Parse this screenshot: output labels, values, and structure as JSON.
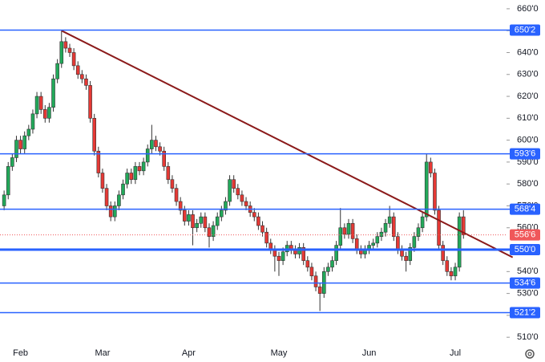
{
  "chart_data": {
    "type": "candlestick",
    "up_color": "#22a95a",
    "down_color": "#e53935",
    "ylim": [
      506.4,
      664
    ],
    "xlim": [
      -1,
      122.5
    ],
    "yticks": [
      {
        "value": 510,
        "label": "510'0"
      },
      {
        "value": 520,
        "label": "520'0"
      },
      {
        "value": 530,
        "label": "530'0"
      },
      {
        "value": 540,
        "label": "540'0"
      },
      {
        "value": 550,
        "label": "550'0"
      },
      {
        "value": 560,
        "label": "560'0"
      },
      {
        "value": 570,
        "label": "570'0"
      },
      {
        "value": 580,
        "label": "580'0"
      },
      {
        "value": 590,
        "label": "590'0"
      },
      {
        "value": 600,
        "label": "600'0"
      },
      {
        "value": 610,
        "label": "610'0"
      },
      {
        "value": 620,
        "label": "620'0"
      },
      {
        "value": 630,
        "label": "630'0"
      },
      {
        "value": 640,
        "label": "640'0"
      },
      {
        "value": 650,
        "label": "650'0"
      },
      {
        "value": 660,
        "label": "660'0"
      }
    ],
    "x_labels": [
      {
        "index": 4,
        "label": "Feb"
      },
      {
        "index": 24,
        "label": "Mar"
      },
      {
        "index": 45,
        "label": "Apr"
      },
      {
        "index": 67,
        "label": "May"
      },
      {
        "index": 89,
        "label": "Jun"
      },
      {
        "index": 110,
        "label": "Jul"
      }
    ],
    "levels": [
      {
        "value": 650.25,
        "label": "650'2",
        "width": 1.5
      },
      {
        "value": 593.75,
        "label": "593'6",
        "width": 1.5
      },
      {
        "value": 568.5,
        "label": "568'4",
        "width": 1.5
      },
      {
        "value": 550,
        "label": "550'0",
        "width": 3
      },
      {
        "value": 534.75,
        "label": "534'6",
        "width": 1.5
      },
      {
        "value": 521.25,
        "label": "521'2",
        "width": 1.5
      }
    ],
    "level_color": "#2962ff",
    "current_price": {
      "value": 556.75,
      "label": "556'6",
      "color": "#f0575a"
    },
    "trendline": {
      "x": [
        14,
        124
      ],
      "y": [
        650,
        546.5
      ],
      "color": "#8b1a1a"
    },
    "candles": [
      [
        570,
        577,
        568,
        575
      ],
      [
        575,
        590,
        573,
        588
      ],
      [
        588,
        594,
        586,
        592
      ],
      [
        592,
        602,
        590,
        600
      ],
      [
        600,
        602,
        594,
        596
      ],
      [
        596,
        604,
        594,
        602
      ],
      [
        602,
        607,
        600,
        605
      ],
      [
        605,
        614,
        603,
        612
      ],
      [
        612,
        622,
        610,
        620
      ],
      [
        620,
        622,
        612,
        614
      ],
      [
        614,
        616,
        608,
        610
      ],
      [
        610,
        617,
        608,
        615
      ],
      [
        615,
        630,
        613,
        628
      ],
      [
        628,
        637,
        626,
        635
      ],
      [
        635,
        650,
        633,
        645
      ],
      [
        645,
        647,
        640,
        642
      ],
      [
        642,
        644,
        638,
        640
      ],
      [
        640,
        642,
        632,
        634
      ],
      [
        634,
        636,
        628,
        630
      ],
      [
        630,
        632,
        626,
        628
      ],
      [
        628,
        630,
        623,
        625
      ],
      [
        625,
        627,
        608,
        610
      ],
      [
        610,
        612,
        593,
        595
      ],
      [
        595,
        597,
        583,
        585
      ],
      [
        585,
        587,
        576,
        578
      ],
      [
        578,
        580,
        568,
        570
      ],
      [
        570,
        572,
        563,
        565
      ],
      [
        565,
        572,
        563,
        570
      ],
      [
        570,
        577,
        568,
        575
      ],
      [
        575,
        582,
        573,
        580
      ],
      [
        580,
        587,
        578,
        585
      ],
      [
        585,
        587,
        580,
        582
      ],
      [
        582,
        590,
        580,
        588
      ],
      [
        588,
        590,
        584,
        586
      ],
      [
        586,
        592,
        584,
        590
      ],
      [
        590,
        598,
        588,
        596
      ],
      [
        596,
        607,
        594,
        600
      ],
      [
        600,
        602,
        595,
        597
      ],
      [
        597,
        599,
        593,
        595
      ],
      [
        595,
        597,
        586,
        588
      ],
      [
        588,
        590,
        580,
        582
      ],
      [
        582,
        584,
        576,
        578
      ],
      [
        578,
        580,
        570,
        572
      ],
      [
        572,
        574,
        566,
        568
      ],
      [
        568,
        570,
        561,
        563
      ],
      [
        563,
        568,
        561,
        566
      ],
      [
        566,
        568,
        552,
        560
      ],
      [
        560,
        564,
        558,
        562
      ],
      [
        562,
        567,
        560,
        565
      ],
      [
        565,
        567,
        558,
        560
      ],
      [
        560,
        562,
        551,
        556
      ],
      [
        556,
        563,
        554,
        561
      ],
      [
        561,
        567,
        559,
        565
      ],
      [
        565,
        570,
        563,
        568
      ],
      [
        568,
        574,
        566,
        572
      ],
      [
        572,
        584,
        570,
        582
      ],
      [
        582,
        584,
        576,
        578
      ],
      [
        578,
        580,
        573,
        575
      ],
      [
        575,
        577,
        570,
        572
      ],
      [
        572,
        574,
        568,
        570
      ],
      [
        570,
        572,
        565,
        567
      ],
      [
        567,
        569,
        563,
        565
      ],
      [
        565,
        567,
        559,
        561
      ],
      [
        561,
        563,
        556,
        558
      ],
      [
        558,
        560,
        551,
        553
      ],
      [
        553,
        555,
        548,
        550
      ],
      [
        550,
        552,
        540,
        547
      ],
      [
        547,
        549,
        538,
        545
      ],
      [
        545,
        551,
        543,
        549
      ],
      [
        549,
        554,
        547,
        552
      ],
      [
        552,
        554,
        548,
        550
      ],
      [
        550,
        552,
        546,
        548
      ],
      [
        548,
        553,
        546,
        551
      ],
      [
        551,
        553,
        543,
        545
      ],
      [
        545,
        547,
        540,
        542
      ],
      [
        542,
        544,
        536,
        538
      ],
      [
        538,
        540,
        531,
        533
      ],
      [
        533,
        535,
        522,
        530
      ],
      [
        530,
        542,
        528,
        540
      ],
      [
        540,
        544,
        538,
        542
      ],
      [
        542,
        547,
        540,
        545
      ],
      [
        545,
        554,
        543,
        552
      ],
      [
        552,
        569,
        550,
        560
      ],
      [
        560,
        562,
        555,
        557
      ],
      [
        557,
        564,
        555,
        562
      ],
      [
        562,
        564,
        553,
        555
      ],
      [
        555,
        557,
        548,
        550
      ],
      [
        550,
        552,
        546,
        548
      ],
      [
        548,
        552,
        546,
        550
      ],
      [
        550,
        554,
        548,
        552
      ],
      [
        552,
        555,
        550,
        553
      ],
      [
        553,
        558,
        551,
        556
      ],
      [
        556,
        560,
        554,
        558
      ],
      [
        558,
        564,
        556,
        562
      ],
      [
        562,
        570,
        560,
        565
      ],
      [
        565,
        567,
        554,
        556
      ],
      [
        556,
        558,
        548,
        550
      ],
      [
        550,
        552,
        545,
        547
      ],
      [
        547,
        549,
        540,
        545
      ],
      [
        545,
        553,
        543,
        551
      ],
      [
        551,
        558,
        549,
        556
      ],
      [
        556,
        562,
        554,
        560
      ],
      [
        560,
        567,
        558,
        565
      ],
      [
        565,
        594,
        563,
        590
      ],
      [
        590,
        592,
        583,
        585
      ],
      [
        585,
        587,
        566,
        568
      ],
      [
        568,
        570,
        550,
        552
      ],
      [
        552,
        554,
        543,
        545
      ],
      [
        545,
        547,
        538,
        540
      ],
      [
        540,
        542,
        536,
        538
      ],
      [
        538,
        544,
        536,
        542
      ],
      [
        542,
        567,
        540,
        565
      ],
      [
        565,
        568,
        555,
        556.75
      ]
    ]
  }
}
